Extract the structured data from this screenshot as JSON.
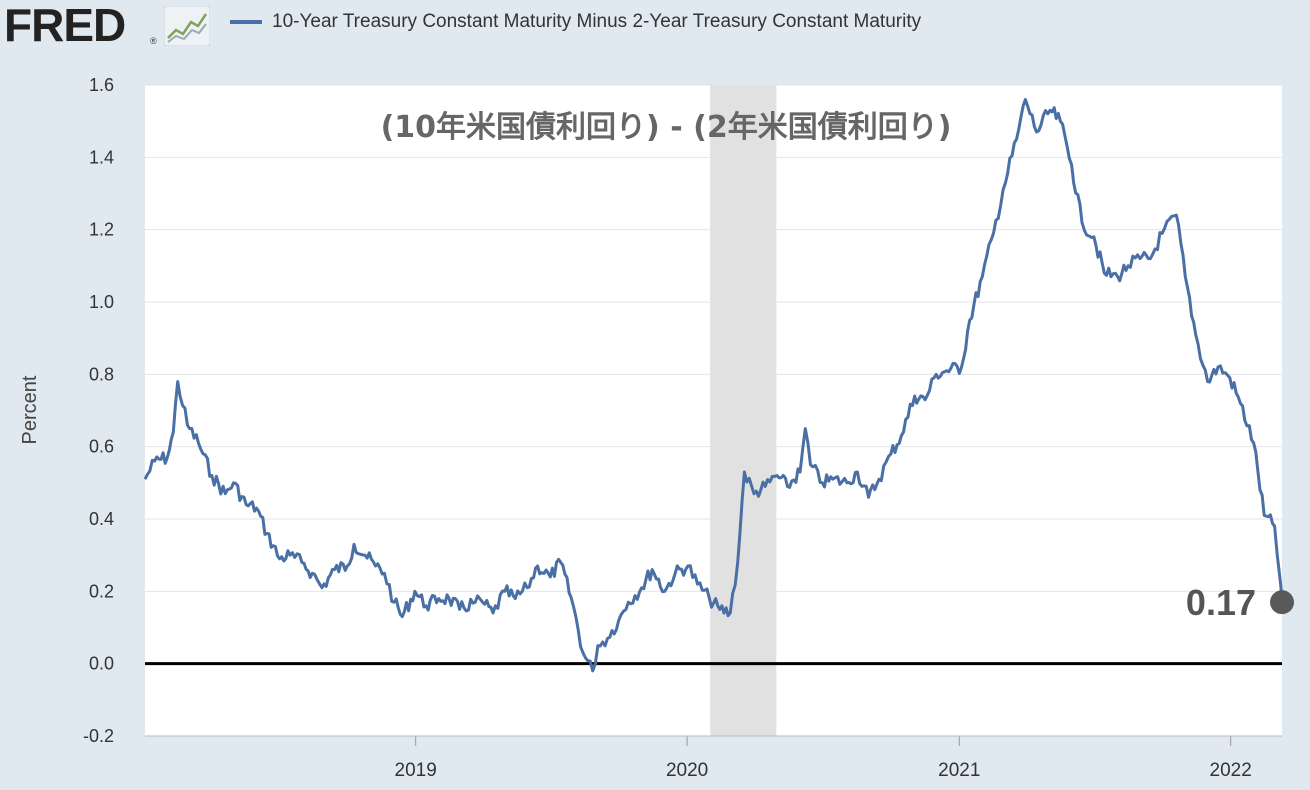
{
  "header": {
    "logo_text": "FRED",
    "logo_reg": "®",
    "logo_icon": "line-chart-icon"
  },
  "colors": {
    "series": "#4a6fa5",
    "background": "#e1e9f0",
    "plot": "#ffffff",
    "recession": "#e1e1e1",
    "zero_line": "#000000",
    "last_marker": "#595959"
  },
  "chart_data": {
    "type": "line",
    "title": "",
    "annotation": "(10年米国債利回り) - (2年米国債利回り)",
    "xlabel": "",
    "ylabel": "Percent",
    "ylim": [
      -0.2,
      1.6
    ],
    "yticks": [
      "-0.2",
      "0.0",
      "0.2",
      "0.4",
      "0.6",
      "0.8",
      "1.0",
      "1.2",
      "1.4",
      "1.6"
    ],
    "xticks": [
      "2019",
      "2020",
      "2021",
      "2022"
    ],
    "xlim": [
      "2018-01-02",
      "2022-03-11"
    ],
    "grid": true,
    "legend_position": "top-left",
    "zero_line": 0.0,
    "recession_shading": {
      "start": "2020-02-01",
      "end": "2020-04-30"
    },
    "last_value_label": "0.17",
    "series": [
      {
        "name": "10-Year Treasury Constant Maturity Minus 2-Year Treasury Constant Maturity",
        "x": [
          "2018-01-02",
          "2018-01-15",
          "2018-02-01",
          "2018-02-09",
          "2018-02-15",
          "2018-02-28",
          "2018-03-15",
          "2018-04-02",
          "2018-04-20",
          "2018-05-01",
          "2018-05-18",
          "2018-06-01",
          "2018-06-15",
          "2018-07-02",
          "2018-07-16",
          "2018-08-01",
          "2018-08-15",
          "2018-08-28",
          "2018-09-14",
          "2018-10-01",
          "2018-10-10",
          "2018-10-25",
          "2018-11-08",
          "2018-11-20",
          "2018-12-03",
          "2018-12-14",
          "2018-12-31",
          "2019-01-15",
          "2019-02-01",
          "2019-02-15",
          "2019-03-01",
          "2019-03-22",
          "2019-04-01",
          "2019-04-15",
          "2019-05-01",
          "2019-05-15",
          "2019-05-31",
          "2019-06-14",
          "2019-07-01",
          "2019-07-15",
          "2019-08-01",
          "2019-08-14",
          "2019-08-27",
          "2019-09-03",
          "2019-09-16",
          "2019-10-01",
          "2019-10-14",
          "2019-11-01",
          "2019-11-15",
          "2019-12-02",
          "2019-12-16",
          "2020-01-02",
          "2020-01-15",
          "2020-01-31",
          "2020-02-14",
          "2020-02-28",
          "2020-03-09",
          "2020-03-18",
          "2020-03-31",
          "2020-04-15",
          "2020-05-01",
          "2020-05-15",
          "2020-06-01",
          "2020-06-08",
          "2020-06-15",
          "2020-07-01",
          "2020-07-15",
          "2020-08-03",
          "2020-08-17",
          "2020-09-01",
          "2020-09-15",
          "2020-10-01",
          "2020-10-15",
          "2020-11-02",
          "2020-11-16",
          "2020-12-01",
          "2020-12-15",
          "2021-01-04",
          "2021-01-15",
          "2021-02-01",
          "2021-02-16",
          "2021-03-01",
          "2021-03-19",
          "2021-03-31",
          "2021-04-15",
          "2021-05-03",
          "2021-05-17",
          "2021-06-01",
          "2021-06-15",
          "2021-07-01",
          "2021-07-15",
          "2021-08-02",
          "2021-08-16",
          "2021-09-01",
          "2021-09-15",
          "2021-10-01",
          "2021-10-20",
          "2021-11-01",
          "2021-11-15",
          "2021-12-01",
          "2021-12-15",
          "2021-12-31",
          "2022-01-14",
          "2022-02-01",
          "2022-02-15",
          "2022-03-01",
          "2022-03-08",
          "2022-03-11"
        ],
        "values": [
          0.51,
          0.56,
          0.57,
          0.64,
          0.78,
          0.66,
          0.61,
          0.52,
          0.47,
          0.5,
          0.44,
          0.43,
          0.36,
          0.29,
          0.3,
          0.28,
          0.25,
          0.21,
          0.26,
          0.27,
          0.33,
          0.3,
          0.27,
          0.25,
          0.17,
          0.13,
          0.2,
          0.16,
          0.18,
          0.18,
          0.15,
          0.17,
          0.17,
          0.14,
          0.2,
          0.18,
          0.21,
          0.27,
          0.24,
          0.28,
          0.16,
          0.03,
          -0.02,
          0.05,
          0.07,
          0.12,
          0.17,
          0.21,
          0.26,
          0.2,
          0.25,
          0.27,
          0.22,
          0.18,
          0.15,
          0.14,
          0.28,
          0.53,
          0.47,
          0.49,
          0.52,
          0.49,
          0.53,
          0.65,
          0.55,
          0.5,
          0.51,
          0.5,
          0.53,
          0.46,
          0.51,
          0.58,
          0.63,
          0.74,
          0.73,
          0.8,
          0.81,
          0.82,
          0.95,
          1.07,
          1.19,
          1.31,
          1.45,
          1.56,
          1.47,
          1.53,
          1.5,
          1.38,
          1.22,
          1.18,
          1.08,
          1.07,
          1.1,
          1.12,
          1.12,
          1.19,
          1.24,
          1.07,
          0.91,
          0.78,
          0.82,
          0.79,
          0.72,
          0.61,
          0.41,
          0.38,
          0.24,
          0.17
        ]
      }
    ]
  }
}
